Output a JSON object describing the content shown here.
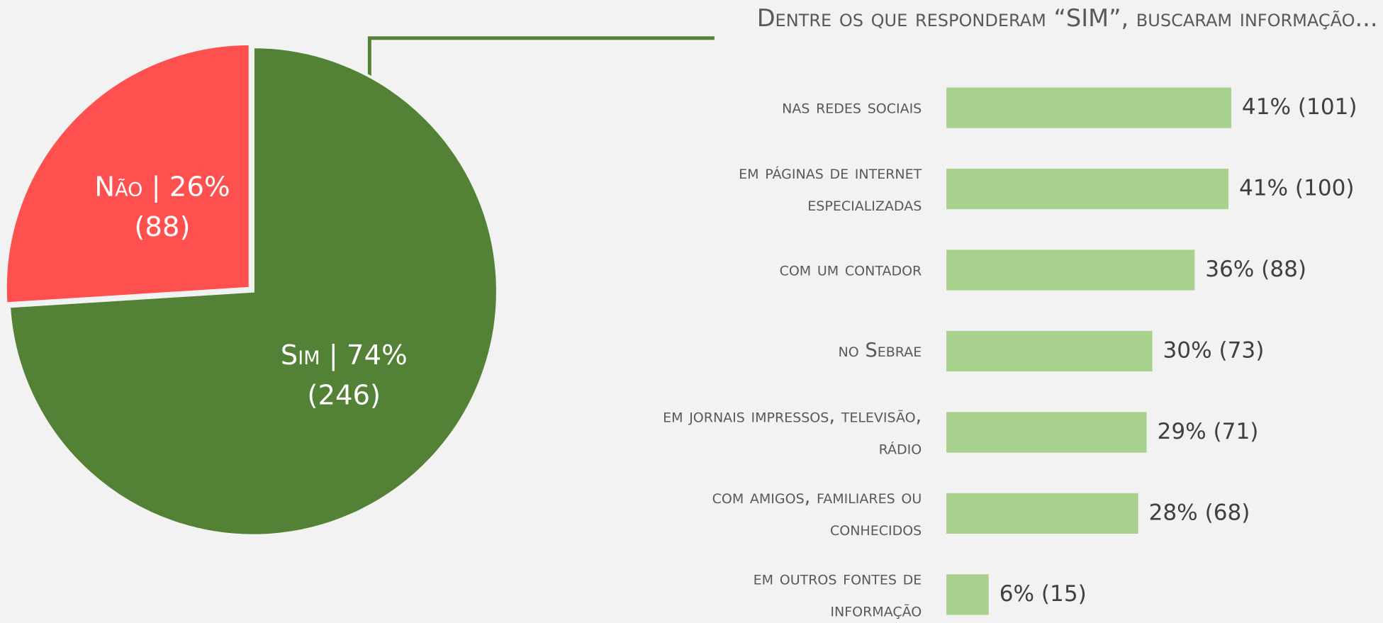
{
  "chart_data": [
    {
      "type": "pie",
      "categories": [
        "Não",
        "Sim"
      ],
      "values": [
        26,
        74
      ],
      "value_labels": [
        "26%",
        "74%"
      ],
      "counts": [
        88,
        246
      ],
      "count_labels": [
        "(88)",
        "(246)"
      ],
      "colors": [
        "#ff5050",
        "#538135"
      ]
    },
    {
      "type": "hbar",
      "title": "Dentre os que responderam “SIM”, buscaram informação...",
      "categories": [
        "nas redes sociais",
        "em páginas de internet\nespecializadas",
        "com um contador",
        "no Sebrae",
        "em jornais impressos, televisão,\nrádio",
        "com amigos, familiares ou\nconhecidos",
        "em outros fontes de\ninformação"
      ],
      "values": [
        101,
        100,
        88,
        73,
        71,
        68,
        15
      ],
      "value_labels": [
        "41% (101)",
        "41% (100)",
        "36% (88)",
        "30% (73)",
        "29% (71)",
        "28% (68)",
        "6% (15)"
      ],
      "color": "#a9d18e"
    }
  ]
}
